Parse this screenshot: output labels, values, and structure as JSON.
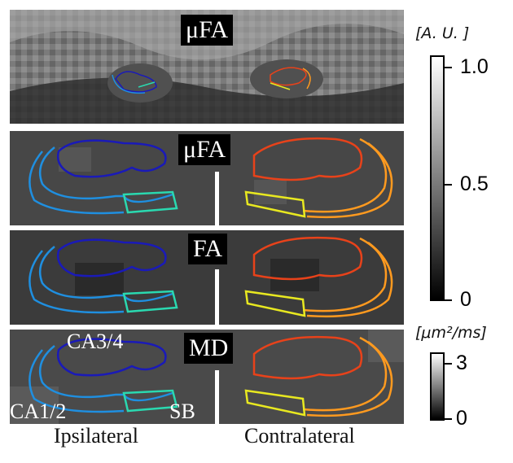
{
  "panels": [
    {
      "label": "μFA"
    },
    {
      "label": "μFA"
    },
    {
      "label": "FA"
    },
    {
      "label": "MD"
    }
  ],
  "region_labels": {
    "ca34": "CA3/4",
    "ca12": "CA1/2",
    "sb": "SB"
  },
  "captions": {
    "left": "Ipsilateral",
    "right": "Contralateral"
  },
  "colorbar_top": {
    "unit": "[A. U. ]",
    "ticks": [
      "1.0",
      "0.5",
      "0"
    ],
    "range": [
      0,
      1.0
    ]
  },
  "colorbar_bottom": {
    "unit": "[μm²/ms]",
    "ticks": [
      "3",
      "0"
    ],
    "range": [
      0,
      3
    ]
  },
  "colors": {
    "ipsi_outer": "#1f8fe0",
    "ipsi_inner": "#1a1ab8",
    "ipsi_sb": "#2ad9b0",
    "contra_outer": "#ff9a1f",
    "contra_inner": "#e8421a",
    "contra_sb": "#e8e820"
  }
}
